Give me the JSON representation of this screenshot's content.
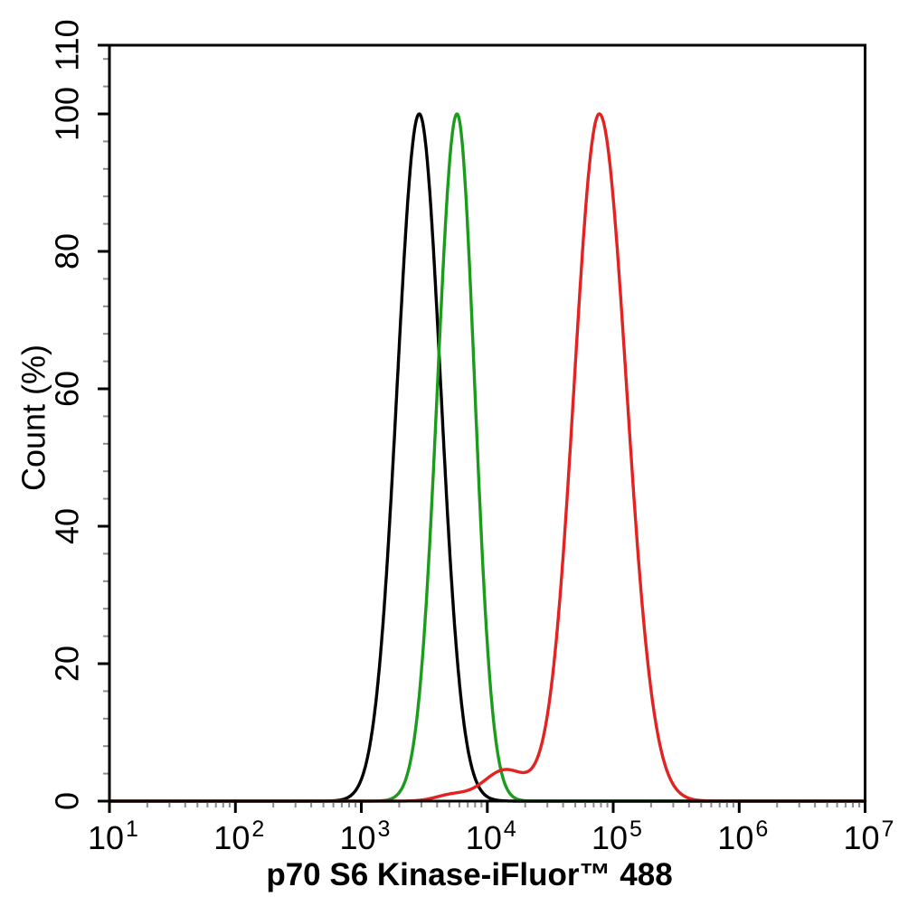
{
  "page": {
    "background": "#ffffff"
  },
  "chart_data": {
    "type": "line",
    "subtype": "flow-cytometry-histogram-overlay",
    "title": "",
    "xlabel": "p70 S6 Kinase-iFluor™ 488",
    "ylabel": "Count (%)",
    "x_scale": "log10",
    "xlim_log10": [
      1,
      7
    ],
    "x_tick_base": "10",
    "x_tick_exponents": [
      1,
      2,
      3,
      4,
      5,
      6,
      7
    ],
    "x_minor_multiples": [
      2,
      3,
      4,
      5,
      6,
      7,
      8,
      9
    ],
    "ylim": [
      0,
      110
    ],
    "y_major_ticks": [
      0,
      20,
      40,
      60,
      80,
      100,
      110
    ],
    "y_tick_labels": [
      "0",
      "20",
      "40",
      "60",
      "80",
      "100",
      "110"
    ],
    "y_minor_step": 4,
    "grid": false,
    "legend": null,
    "axis_color": "#000000",
    "minor_tick_color": "#8a8a8a",
    "curve_stroke_width": 3.4,
    "series": [
      {
        "name": "black-curve",
        "color": "#000000",
        "peak_percent": 100,
        "peak_x_log10": 3.46,
        "peak_x_value_approx": 2900,
        "components": [
          {
            "amp": 100,
            "mu": 3.46,
            "sigma_left": 0.175,
            "sigma_right": 0.17
          }
        ]
      },
      {
        "name": "green-curve",
        "color": "#1c9c1c",
        "peak_percent": 100,
        "peak_x_log10": 3.76,
        "peak_x_value_approx": 5800,
        "components": [
          {
            "amp": 100,
            "mu": 3.76,
            "sigma_left": 0.155,
            "sigma_right": 0.14
          }
        ]
      },
      {
        "name": "red-curve",
        "color": "#e32222",
        "peak_percent": 100,
        "peak_x_log10": 4.89,
        "peak_x_value_approx": 78000,
        "components": [
          {
            "amp": 100,
            "mu": 4.89,
            "sigma_left": 0.2,
            "sigma_right": 0.215
          },
          {
            "amp": 4.5,
            "mu": 4.14,
            "sigma_left": 0.17,
            "sigma_right": 0.17
          },
          {
            "amp": 0.9,
            "mu": 3.72,
            "sigma_left": 0.13,
            "sigma_right": 0.13
          }
        ]
      }
    ]
  }
}
